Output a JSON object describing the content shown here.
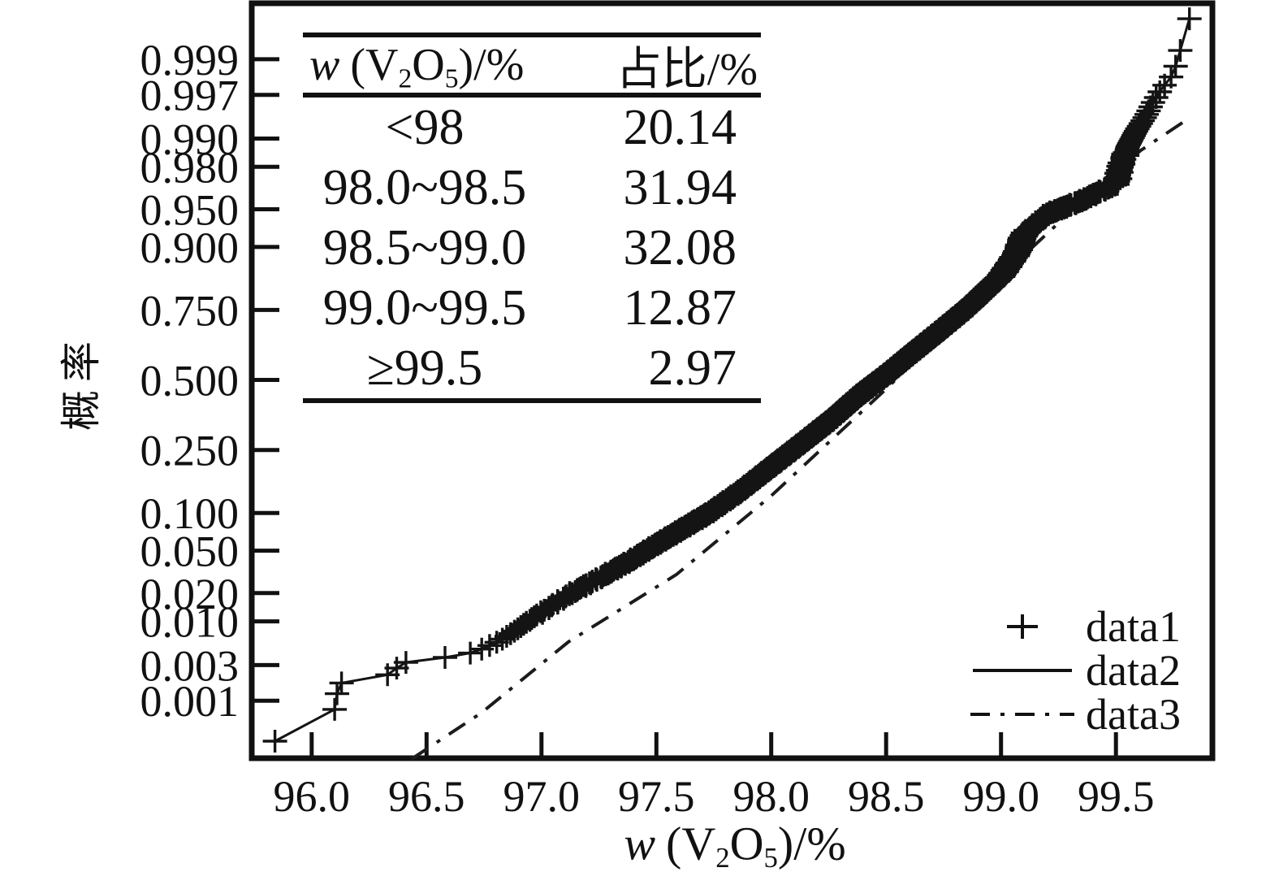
{
  "chart_data": {
    "type": "scatter",
    "subtype": "normal-probability-plot",
    "title": "",
    "xlabel": "w (V₂O₅)/%",
    "xlabel_parts": {
      "w": "w",
      "lp": "(V",
      "s2": "2",
      "O": "O",
      "s5": "5",
      "rp": ")/%"
    },
    "ylabel": "概率",
    "x_axis": {
      "min": 95.739,
      "max": 99.92,
      "ticks": [
        "96.0",
        "96.5",
        "97.0",
        "97.5",
        "98.0",
        "98.5",
        "99.0",
        "99.5"
      ],
      "grid": false
    },
    "y_axis": {
      "scale": "normal-probability",
      "z_range": [
        -3.645,
        3.63
      ],
      "ticks": [
        "0.999",
        "0.997",
        "0.990",
        "0.980",
        "0.950",
        "0.900",
        "0.750",
        "0.500",
        "0.250",
        "0.100",
        "0.050",
        "0.020",
        "0.010",
        "0.003",
        "0.001"
      ],
      "grid": false
    },
    "series": [
      {
        "name": "data1",
        "style": "plus-markers",
        "color": "#141414",
        "n": 2000,
        "note": "order statistics p=(i-0.5)/n mapped through empirical quantile anchors",
        "quantile_anchors": [
          [
            0.00025,
            95.84
          ],
          [
            0.00075,
            96.1
          ],
          [
            0.00125,
            96.11
          ],
          [
            0.00175,
            96.13
          ],
          [
            0.00225,
            96.33
          ],
          [
            0.00275,
            96.37
          ],
          [
            0.00325,
            96.41
          ],
          [
            0.00375,
            96.58
          ],
          [
            0.00425,
            96.69
          ],
          [
            0.00475,
            96.74
          ],
          [
            0.006,
            96.82
          ],
          [
            0.008,
            96.89
          ],
          [
            0.01,
            96.94
          ],
          [
            0.014,
            97.03
          ],
          [
            0.02,
            97.13
          ],
          [
            0.028,
            97.25
          ],
          [
            0.04,
            97.38
          ],
          [
            0.055,
            97.49
          ],
          [
            0.075,
            97.61
          ],
          [
            0.1,
            97.73
          ],
          [
            0.14,
            97.86
          ],
          [
            0.2014,
            98.0
          ],
          [
            0.27,
            98.13
          ],
          [
            0.35,
            98.26
          ],
          [
            0.44,
            98.38
          ],
          [
            0.5208,
            98.5
          ],
          [
            0.6,
            98.61
          ],
          [
            0.68,
            98.73
          ],
          [
            0.76,
            98.86
          ],
          [
            0.8416,
            99.0
          ],
          [
            0.89,
            99.07
          ],
          [
            0.92,
            99.1
          ],
          [
            0.945,
            99.2
          ],
          [
            0.958,
            99.35
          ],
          [
            0.966,
            99.44
          ],
          [
            0.9703,
            99.5
          ],
          [
            0.98,
            99.52
          ],
          [
            0.9875,
            99.55
          ],
          [
            0.992,
            99.59
          ],
          [
            0.9945,
            99.63
          ],
          [
            0.9962,
            99.66
          ],
          [
            0.9975,
            99.7
          ],
          [
            0.99825,
            99.74
          ],
          [
            0.99875,
            99.76
          ],
          [
            0.99925,
            99.78
          ],
          [
            0.99975,
            99.82
          ]
        ]
      },
      {
        "name": "data2",
        "style": "solid-line",
        "color": "#141414",
        "source": "same empirical quantile curve as data1"
      },
      {
        "name": "data3",
        "style": "dash-dot-line",
        "color": "#1c1c1c",
        "points": [
          [
            96.435,
            0.00013
          ],
          [
            96.739,
            0.00067
          ],
          [
            97.117,
            0.0058
          ],
          [
            97.587,
            0.0304
          ],
          [
            98.0,
            0.1322
          ],
          [
            98.495,
            0.461
          ],
          [
            99.0,
            0.8409
          ],
          [
            99.343,
            0.9557
          ],
          [
            99.608,
            0.9865
          ],
          [
            99.82,
            0.9942
          ]
        ]
      }
    ],
    "legend": {
      "position": "lower-right",
      "items": [
        {
          "label": "data1",
          "symbol": "plus-marker"
        },
        {
          "label": "data2",
          "symbol": "solid-line"
        },
        {
          "label": "data3",
          "symbol": "dash-dot-line"
        }
      ]
    },
    "inset_table": {
      "header": {
        "col1": "w (V₂O₅)/%",
        "col2": "占比/%"
      },
      "rows": [
        {
          "range": "<98",
          "pct": "20.14"
        },
        {
          "range": "98.0~98.5",
          "pct": "31.94"
        },
        {
          "range": "98.5~99.0",
          "pct": "32.08"
        },
        {
          "range": "99.0~99.5",
          "pct": "12.87"
        },
        {
          "range": "≥99.5",
          "pct": "2.97"
        }
      ]
    }
  }
}
